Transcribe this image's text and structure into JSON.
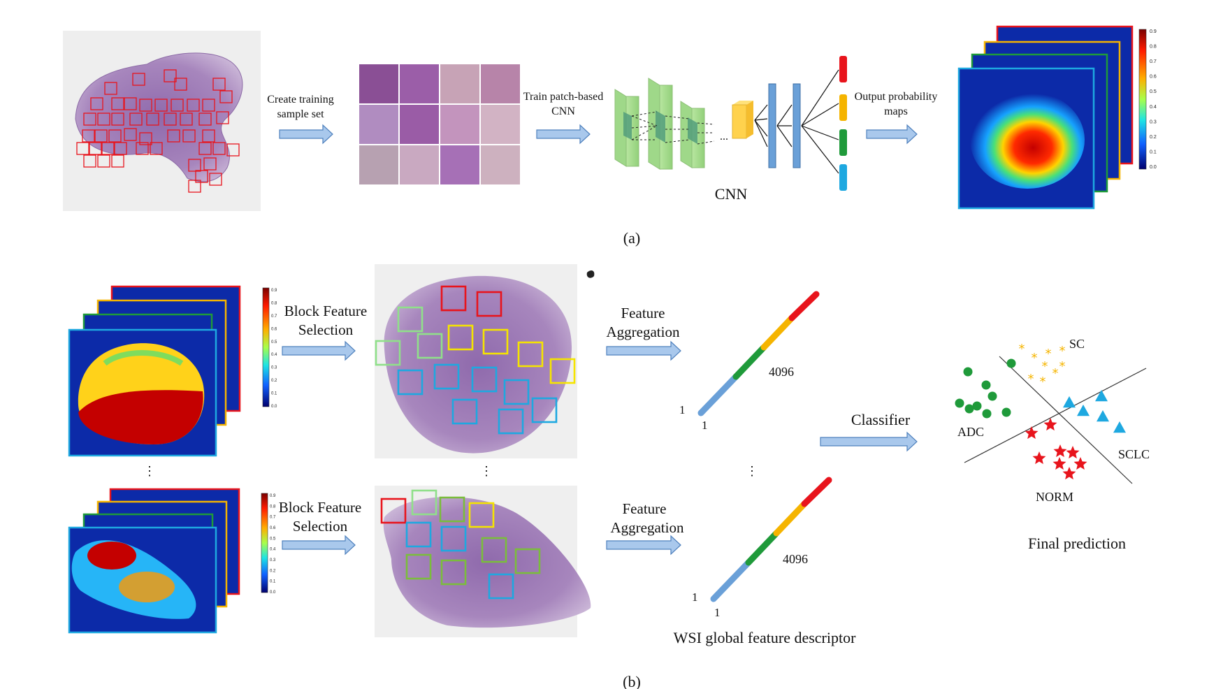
{
  "panel_a": {
    "label": "(a)",
    "step1": [
      "Create training",
      "sample set"
    ],
    "step2": [
      "Train patch-based",
      "CNN"
    ],
    "step3": [
      "Output probability",
      "maps"
    ],
    "cnn_label": "CNN",
    "cnn_ellipsis": "...",
    "colorbar_ticks": [
      "0.9",
      "0.8",
      "0.7",
      "0.6",
      "0.5",
      "0.4",
      "0.3",
      "0.2",
      "0.1",
      "0.0"
    ]
  },
  "panel_b": {
    "label": "(b)",
    "block_selection": [
      "Block Feature",
      "Selection"
    ],
    "feature_aggregation": [
      "Feature",
      "Aggregation"
    ],
    "vector_top": "4096",
    "vector_start_a": "1",
    "vector_start_b": "1",
    "vdots": "⋮",
    "classifier": "Classifier",
    "descriptor_caption": "WSI global feature descriptor",
    "final_prediction": "Final prediction",
    "classes": {
      "sc": "SC",
      "adc": "ADC",
      "sclc": "SCLC",
      "norm": "NORM"
    },
    "colorbar_ticks": [
      "0.9",
      "0.8",
      "0.7",
      "0.6",
      "0.5",
      "0.4",
      "0.3",
      "0.2",
      "0.1",
      "0.0"
    ]
  },
  "colors": {
    "arrow_fill": "#a9c8ec",
    "arrow_stroke": "#4f81bd",
    "red": "#e8141c",
    "orange": "#f5b400",
    "green": "#1f9a3a",
    "cyan": "#1ea8e0",
    "blue_bar": "#6aa0d8",
    "tissue": "#a88abf"
  }
}
